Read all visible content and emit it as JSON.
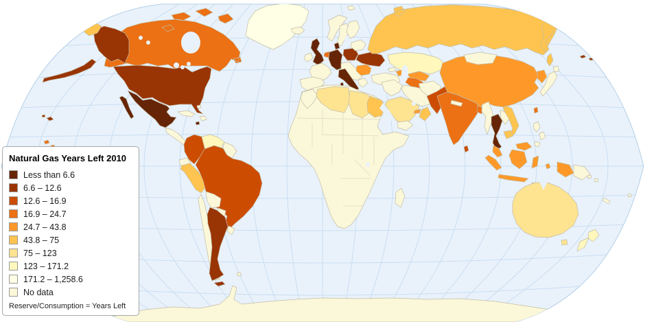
{
  "legend": {
    "title": "Natural Gas Years Left 2010",
    "footer": "Reserve/Consumption = Years Left",
    "items": [
      {
        "label": "Less than 6.6",
        "class": "c1",
        "color": "#662506"
      },
      {
        "label": "6.6 – 12.6",
        "class": "c2",
        "color": "#993404"
      },
      {
        "label": "12.6 – 16.9",
        "class": "c3",
        "color": "#cc4c02"
      },
      {
        "label": "16.9 – 24.7",
        "class": "c4",
        "color": "#ec7014"
      },
      {
        "label": "24.7 – 43.8",
        "class": "c5",
        "color": "#fe9929"
      },
      {
        "label": "43.8 – 75",
        "class": "c6",
        "color": "#fec44f"
      },
      {
        "label": "75 – 123",
        "class": "c7",
        "color": "#fee391"
      },
      {
        "label": "123 – 171.2",
        "class": "c8",
        "color": "#fff7bc"
      },
      {
        "label": "171.2 – 1,258.6",
        "class": "c9",
        "color": "#ffffe5"
      },
      {
        "label": "No data",
        "class": "nodata",
        "color": "#fbf7d9"
      }
    ]
  },
  "map": {
    "ocean_color": "#e9f2fb",
    "graticule_color": "#c9ddf1",
    "outline_color": "#b3cfe8",
    "country_border_color": "#c2bda6",
    "inner_border_color": "#ddd8c2",
    "classes": {
      "c1": "#662506",
      "c2": "#993404",
      "c3": "#cc4c02",
      "c4": "#ec7014",
      "c5": "#fe9929",
      "c6": "#fec44f",
      "c7": "#fee391",
      "c8": "#fff7bc",
      "c9": "#ffffe5",
      "nodata": "#fbf7d9"
    },
    "countries": {
      "greenland": "c9",
      "canada": "c4",
      "usa": "c2",
      "mexico": "c1",
      "central_america": "nodata",
      "cuba": "nodata",
      "hispaniola": "nodata",
      "bahamas": "nodata",
      "jamaica": "c1",
      "trinidad": "c2",
      "colombia": "c3",
      "venezuela": "c8",
      "guyanas": "nodata",
      "ecuador": "nodata",
      "peru": "c6",
      "brazil": "c3",
      "bolivia": "nodata",
      "paraguay": "nodata",
      "uruguay": "nodata",
      "chile": "nodata",
      "argentina": "c2",
      "falklands": "nodata",
      "antarctica": "nodata",
      "iceland": "nodata",
      "uk": "c1",
      "ireland": "nodata",
      "norway": "nodata",
      "sweden": "nodata",
      "finland": "nodata",
      "denmark": "c1",
      "netherlands": "c4",
      "germany": "c1",
      "france": "nodata",
      "spain": "nodata",
      "italy": "c1",
      "central_europe": "nodata",
      "poland": "c2",
      "belarus_baltics": "nodata",
      "ukraine": "c2",
      "romania": "c5",
      "greece": "nodata",
      "turkey": "nodata",
      "svalbard": "nodata",
      "russia": "c6",
      "kazakhstan": "c8",
      "uzbekistan": "c5",
      "turkmenistan": "c4",
      "azerbaijan": "c5",
      "georgia": "nodata",
      "iran": "nodata",
      "levant": "nodata",
      "saudi_arabia": "c7",
      "yemen": "nodata",
      "oman": "c6",
      "uae": "c5",
      "egypt": "c6",
      "libya": "c7",
      "algeria": "c7",
      "morocco": "nodata",
      "africa_other": "nodata",
      "madagascar": "nodata",
      "afghanistan": "nodata",
      "pakistan": "c3",
      "india": "c4",
      "sri_lanka": "c3",
      "nepal": "nodata",
      "bangladesh": "c4",
      "myanmar": "nodata",
      "china": "c5",
      "mongolia": "nodata",
      "korea": "c5",
      "japan": "nodata",
      "taiwan": "c4",
      "thailand": "c1",
      "laos": "nodata",
      "vietnam": "c6",
      "cambodia": "c6",
      "malaysia": "c5",
      "indonesia": "c5",
      "png": "nodata",
      "philippines": "nodata",
      "australia": "c7",
      "new_zealand": "c8",
      "pacific_islands": "nodata",
      "polynesia": "c4"
    }
  }
}
